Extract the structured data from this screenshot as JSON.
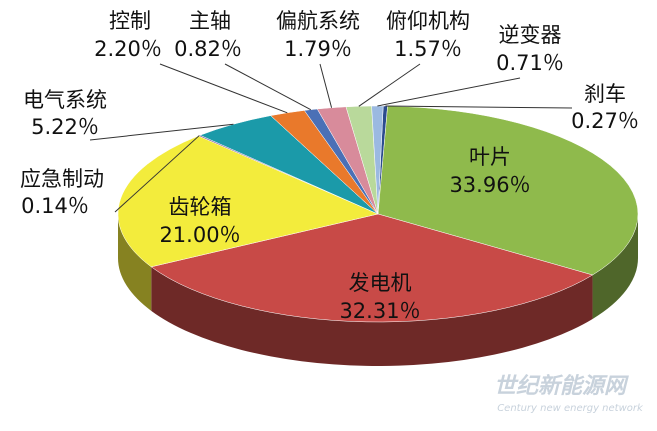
{
  "chart_data": {
    "type": "pie",
    "categories": [
      "刹车",
      "叶片",
      "发电机",
      "齿轮箱",
      "应急制动",
      "电气系统",
      "控制",
      "主轴",
      "偏航系统",
      "俯仰机构",
      "逆变器"
    ],
    "values": [
      0.27,
      33.96,
      32.31,
      21.0,
      0.14,
      5.22,
      2.2,
      0.82,
      1.79,
      1.57,
      0.71
    ],
    "value_labels": [
      "0.27％",
      "33.96％",
      "32.31％",
      "21.00％",
      "0.14％",
      "5.22％",
      "2.20％",
      "0.82％",
      "1.79％",
      "1.57％",
      "0.71％"
    ],
    "colors": [
      "#2c4c8e",
      "#8fba4c",
      "#c84a47",
      "#f3ec3c",
      "#7a5a9a",
      "#1b9aa9",
      "#e9792b",
      "#4b70b6",
      "#d88b9b",
      "#b9d99b",
      "#9bb9e1"
    ]
  },
  "watermark": [
    "世纪新能源网",
    "Century new energy network"
  ]
}
